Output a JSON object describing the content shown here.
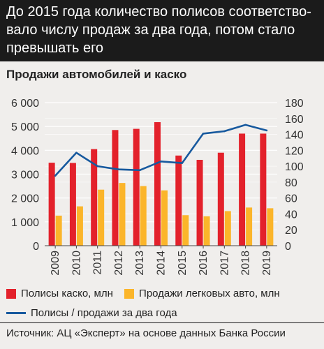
{
  "header": {
    "title": "До 2015 года количество полисов соответство-вало числу продаж за два года, потом стало превышать его"
  },
  "source": "Источник: АЦ «Эксперт» на основе данных Банка России",
  "colors": {
    "header_bg": "#1b1b1b",
    "panel_bg": "#f0eeec",
    "casco_bar": "#e3212b",
    "car_sales_bar": "#fbb52a",
    "ratio_line": "#17599e",
    "grid": "#ffffff"
  },
  "chart_data": {
    "type": "bar",
    "title": "Продажи автомобилей и каско",
    "categories": [
      "2009",
      "2010",
      "2011",
      "2012",
      "2013",
      "2014",
      "2015",
      "2016",
      "2017",
      "2018",
      "2019"
    ],
    "series": [
      {
        "name": "Полисы каско, млн",
        "type": "bar",
        "axis": "left",
        "color": "#e3212b",
        "values": [
          3480,
          3470,
          4050,
          4850,
          4900,
          5180,
          3780,
          3600,
          3900,
          4700,
          4700
        ]
      },
      {
        "name": "Продажи легковых авто, млн",
        "type": "bar",
        "axis": "left",
        "color": "#fbb52a",
        "values": [
          1260,
          1650,
          2350,
          2630,
          2500,
          2320,
          1280,
          1230,
          1450,
          1600,
          1570
        ]
      },
      {
        "name": "Полисы / продажи за два года",
        "type": "line",
        "axis": "right",
        "color": "#17599e",
        "values": [
          88,
          117,
          100,
          96,
          95,
          106,
          104,
          141,
          144,
          152,
          145
        ]
      }
    ],
    "y_left": {
      "range": [
        0,
        6000
      ],
      "ticks": [
        "0",
        "1 000",
        "2 000",
        "3 000",
        "4 000",
        "5 000",
        "6 000"
      ]
    },
    "y_right": {
      "range": [
        0,
        180
      ],
      "ticks": [
        "0",
        "20",
        "40",
        "60",
        "80",
        "100",
        "120",
        "140",
        "160",
        "180"
      ]
    },
    "grid": "horizontal",
    "legend": "bottom"
  },
  "legend": {
    "casco": "Полисы каско, млн",
    "car_sales": "Продажи легковых авто, млн",
    "ratio": "Полисы / продажи за два года"
  }
}
